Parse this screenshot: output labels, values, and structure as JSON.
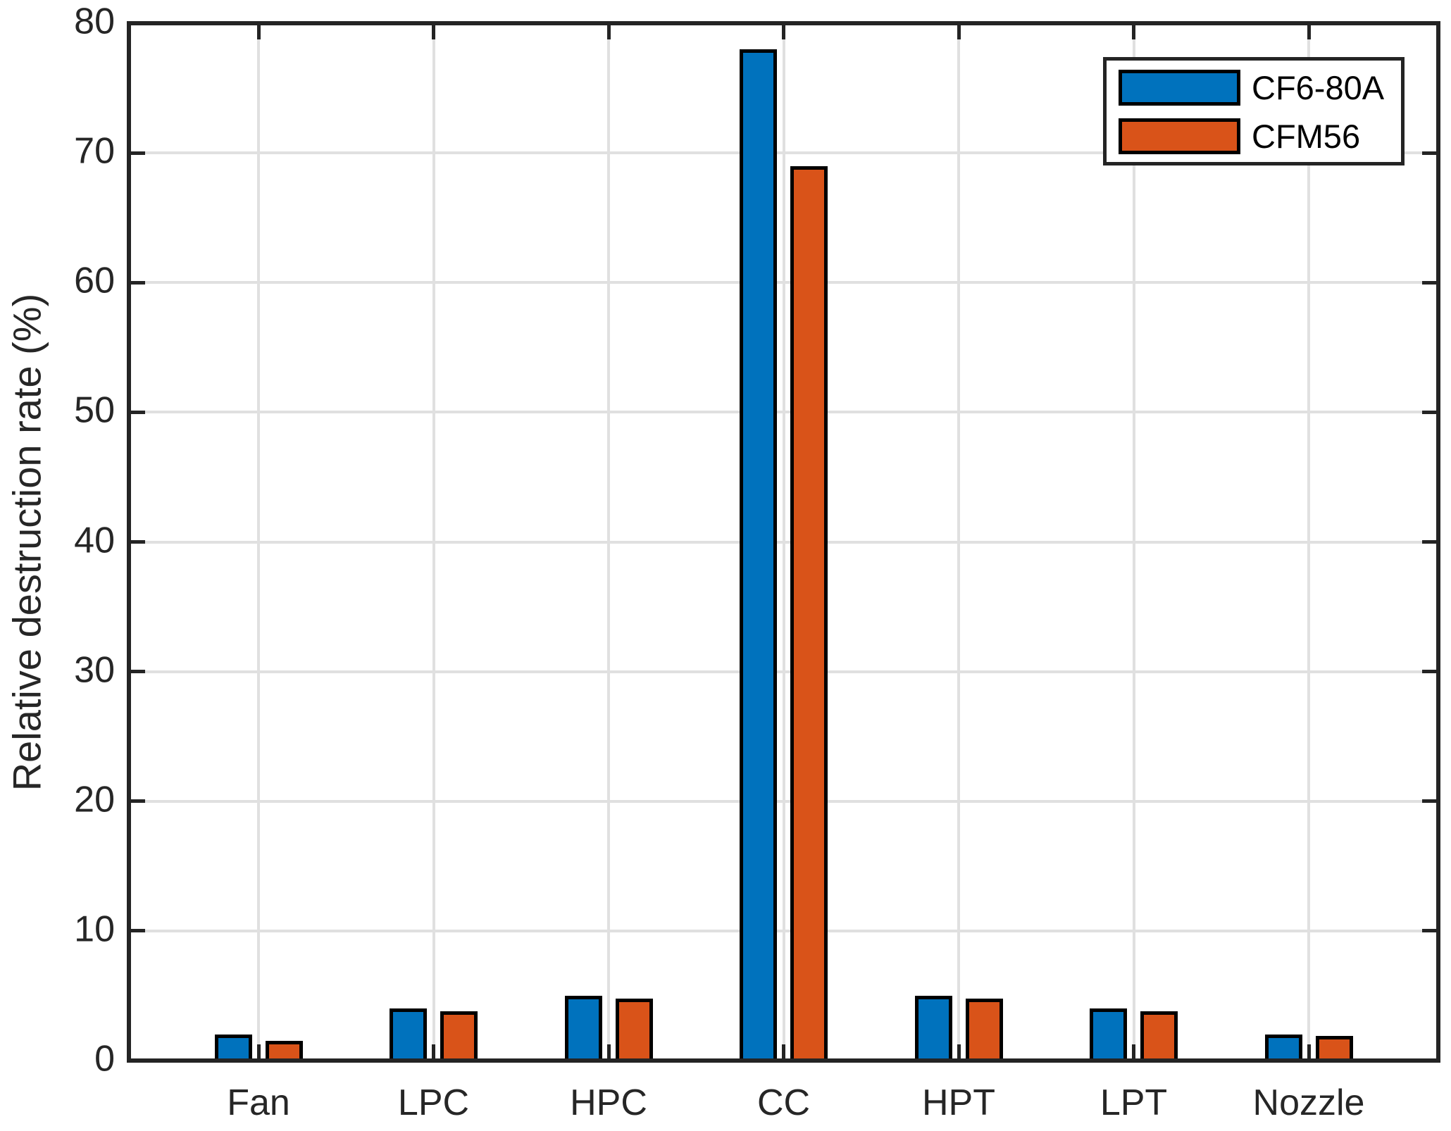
{
  "chart_data": {
    "type": "bar",
    "title": "",
    "xlabel": "",
    "ylabel": "Relative destruction rate (%)",
    "categories": [
      "Fan",
      "LPC",
      "HPC",
      "CC",
      "HPT",
      "LPT",
      "Nozzle"
    ],
    "series": [
      {
        "name": "CF6-80A",
        "color": "#0072BD",
        "values": [
          2,
          4,
          5,
          78,
          5,
          4,
          2
        ]
      },
      {
        "name": "CFM56",
        "color": "#D95319",
        "values": [
          1.5,
          3.8,
          4.8,
          69,
          4.8,
          3.8,
          1.9
        ]
      }
    ],
    "ylim": [
      0,
      80
    ],
    "yticks": [
      0,
      10,
      20,
      30,
      40,
      50,
      60,
      70,
      80
    ],
    "grid": true,
    "legend_position": "top-right",
    "bar_edge_color": "#000000"
  },
  "colors": {
    "axis": "#242424",
    "grid": "#e0e0e0",
    "text": "#262626",
    "background": "#ffffff"
  }
}
